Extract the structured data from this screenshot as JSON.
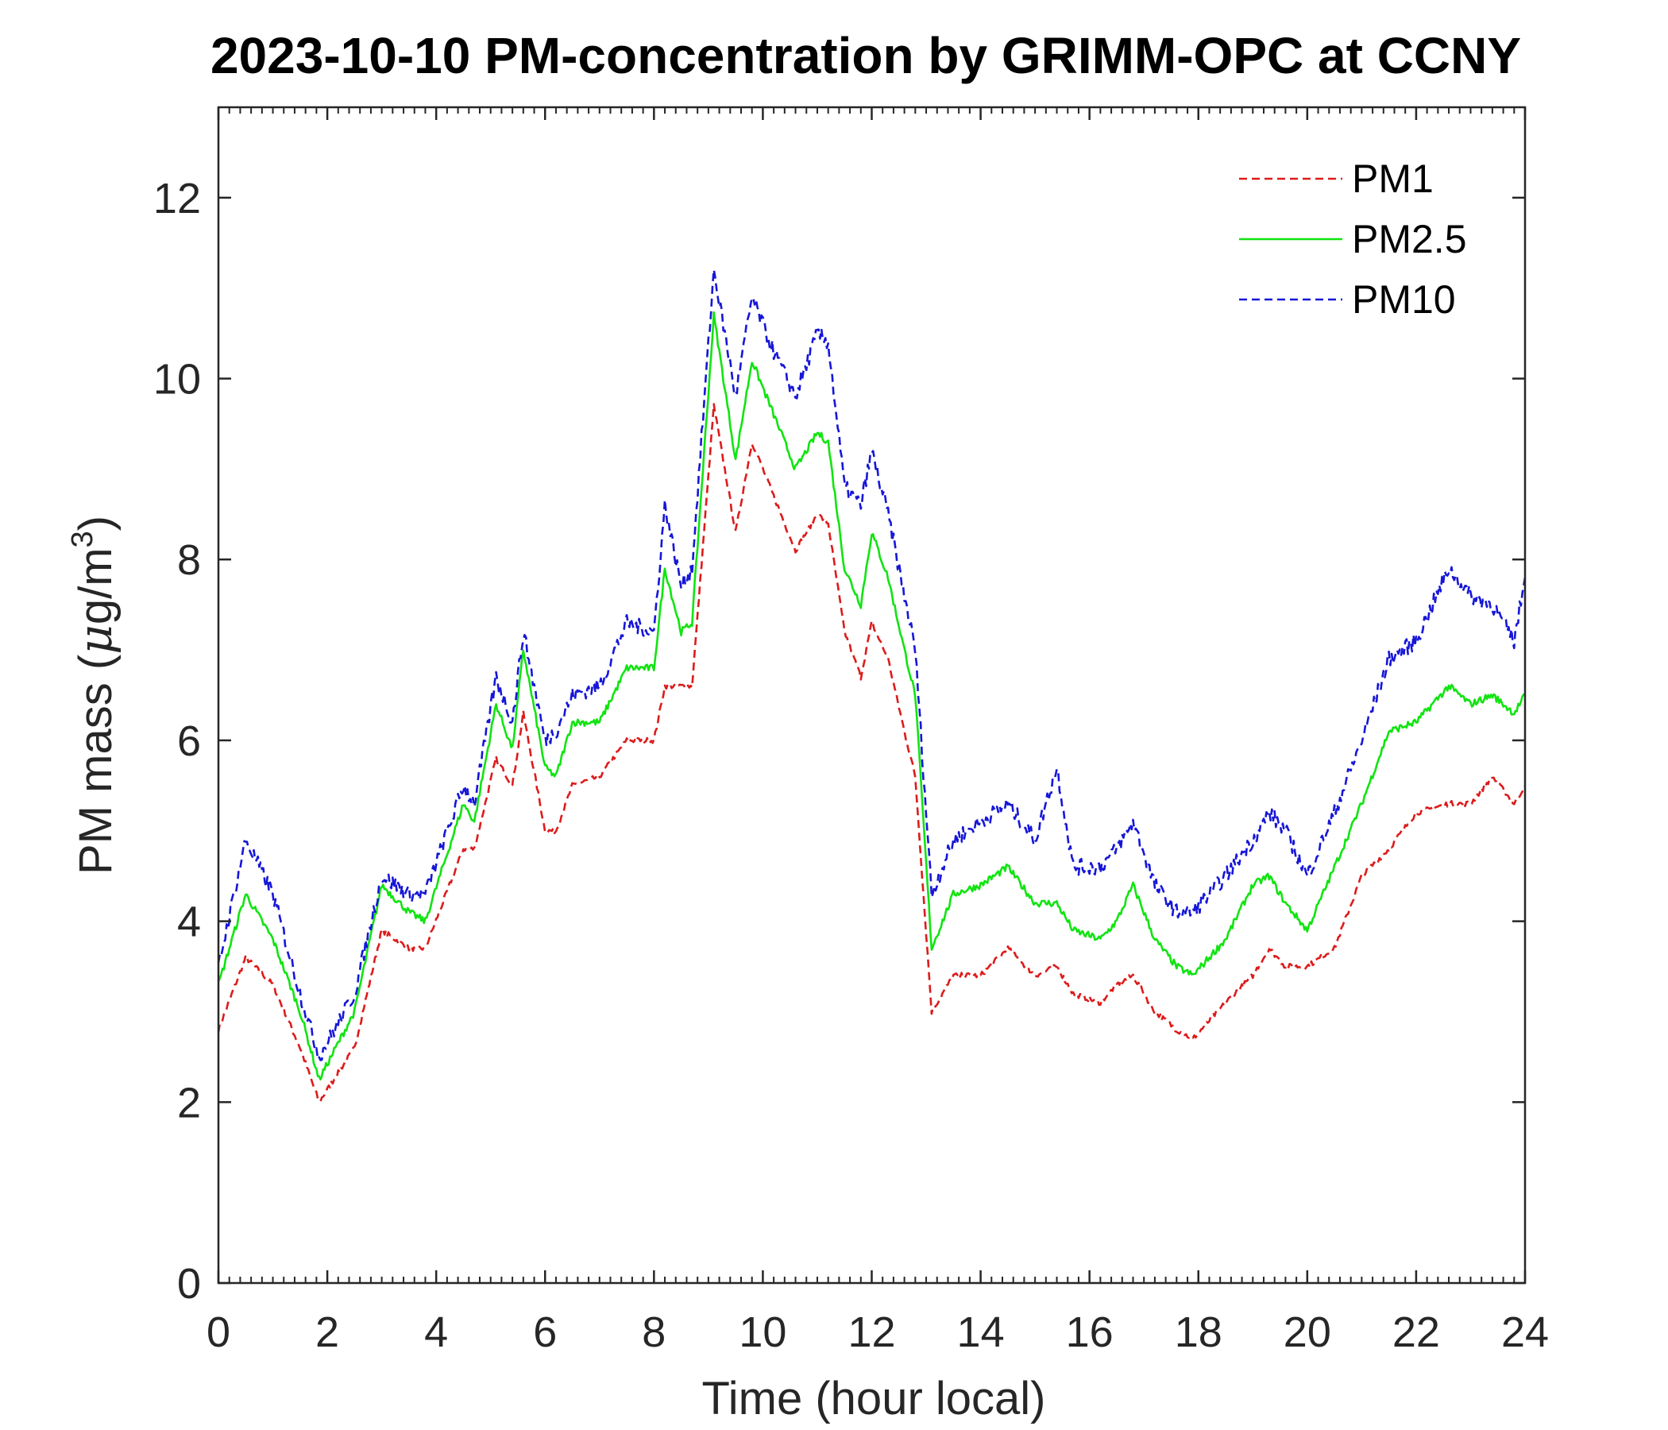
{
  "chart_data": {
    "type": "line",
    "title": "2023-10-10 PM-concentration by GRIMM-OPC at CCNY",
    "xlabel": "Time (hour local)",
    "ylabel_main": "PM mass (",
    "ylabel_mu": "μ",
    "ylabel_unit": "g/m",
    "ylabel_sup": "3",
    "ylabel_close": ")",
    "xlim": [
      0,
      24
    ],
    "ylim": [
      0,
      13
    ],
    "xticks": [
      0,
      2,
      4,
      6,
      8,
      10,
      12,
      14,
      16,
      18,
      20,
      22,
      24
    ],
    "xtick_labels": [
      "0",
      "2",
      "4",
      "6",
      "8",
      "10",
      "12",
      "14",
      "16",
      "18",
      "20",
      "22",
      "24"
    ],
    "yticks": [
      0,
      2,
      4,
      6,
      8,
      10,
      12
    ],
    "ytick_labels": [
      "0",
      "2",
      "4",
      "6",
      "8",
      "10",
      "12"
    ],
    "legend_position": "top-right",
    "x": [
      0,
      0.5,
      1,
      1.5,
      1.85,
      2.5,
      3,
      3.5,
      3.8,
      4.5,
      4.7,
      5.1,
      5.4,
      5.6,
      6.0,
      6.2,
      6.5,
      7,
      7.5,
      8,
      8.2,
      8.5,
      8.7,
      9.1,
      9.5,
      9.8,
      10.2,
      10.6,
      11,
      11.2,
      11.5,
      11.8,
      12,
      12.3,
      12.6,
      12.8,
      13.1,
      13.5,
      14,
      14.5,
      15,
      15.4,
      15.7,
      16.2,
      16.5,
      16.8,
      17.2,
      17.6,
      17.9,
      18.5,
      19,
      19.3,
      19.6,
      20,
      20.5,
      21,
      21.5,
      22,
      22.6,
      23,
      23.4,
      23.8,
      24
    ],
    "series": [
      {
        "name": "PM1",
        "color": "#dd1b1b",
        "style": "dashed",
        "values": [
          2.8,
          3.6,
          3.3,
          2.6,
          2.0,
          2.6,
          3.9,
          3.7,
          3.7,
          4.8,
          4.8,
          5.8,
          5.5,
          6.3,
          5.0,
          5.0,
          5.5,
          5.6,
          6.0,
          6.0,
          6.6,
          6.6,
          6.6,
          9.7,
          8.3,
          9.3,
          8.7,
          8.1,
          8.5,
          8.4,
          7.2,
          6.7,
          7.3,
          6.9,
          6.1,
          5.6,
          3.0,
          3.4,
          3.4,
          3.7,
          3.4,
          3.5,
          3.2,
          3.1,
          3.3,
          3.4,
          3.0,
          2.8,
          2.7,
          3.1,
          3.4,
          3.7,
          3.5,
          3.5,
          3.7,
          4.5,
          4.8,
          5.2,
          5.3,
          5.3,
          5.6,
          5.3,
          5.5
        ]
      },
      {
        "name": "PM2.5",
        "color": "#11e411",
        "style": "solid",
        "values": [
          3.3,
          4.3,
          3.8,
          3.0,
          2.25,
          3.0,
          4.4,
          4.1,
          4.0,
          5.3,
          5.1,
          6.4,
          5.9,
          7.0,
          5.7,
          5.6,
          6.2,
          6.2,
          6.8,
          6.8,
          7.9,
          7.2,
          7.3,
          10.7,
          9.1,
          10.2,
          9.6,
          9.0,
          9.4,
          9.3,
          7.9,
          7.5,
          8.3,
          7.8,
          7.0,
          6.5,
          3.7,
          4.3,
          4.4,
          4.6,
          4.2,
          4.2,
          3.9,
          3.8,
          4.0,
          4.4,
          3.8,
          3.5,
          3.4,
          3.8,
          4.4,
          4.5,
          4.2,
          3.9,
          4.6,
          5.3,
          6.1,
          6.2,
          6.6,
          6.4,
          6.5,
          6.3,
          6.5
        ]
      },
      {
        "name": "PM10",
        "color": "#1616d8",
        "style": "dashed",
        "values": [
          3.5,
          4.9,
          4.3,
          3.2,
          2.5,
          3.2,
          4.5,
          4.3,
          4.3,
          5.5,
          5.3,
          6.7,
          6.2,
          7.2,
          6.0,
          6.1,
          6.5,
          6.6,
          7.3,
          7.2,
          8.6,
          7.7,
          7.9,
          11.2,
          9.8,
          10.9,
          10.3,
          9.8,
          10.5,
          10.4,
          8.8,
          8.6,
          9.2,
          8.5,
          7.6,
          7.0,
          4.3,
          4.9,
          5.1,
          5.3,
          4.9,
          5.7,
          4.6,
          4.6,
          4.8,
          5.1,
          4.4,
          4.1,
          4.1,
          4.5,
          4.9,
          5.2,
          5.0,
          4.5,
          5.2,
          6.0,
          6.9,
          7.1,
          7.9,
          7.6,
          7.5,
          7.1,
          7.8
        ]
      }
    ]
  }
}
